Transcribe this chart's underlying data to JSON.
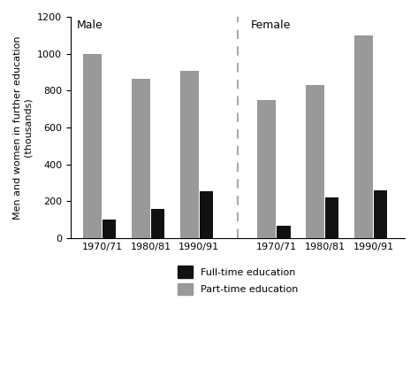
{
  "title_male": "Male",
  "title_female": "Female",
  "ylabel": "Men and women in further education\n(thousands)",
  "periods": [
    "1970/71",
    "1980/81",
    "1990/91"
  ],
  "male_fulltime": [
    100,
    160,
    255
  ],
  "male_parttime": [
    1000,
    865,
    905
  ],
  "female_fulltime": [
    70,
    220,
    260
  ],
  "female_parttime": [
    750,
    830,
    1100
  ],
  "ylim": [
    0,
    1200
  ],
  "yticks": [
    0,
    200,
    400,
    600,
    800,
    1000,
    1200
  ],
  "fulltime_color": "#111111",
  "parttime_color": "#999999",
  "pt_bar_width": 0.38,
  "ft_bar_width": 0.28,
  "legend_labels": [
    "Full-time education",
    "Part-time education"
  ],
  "figsize": [
    4.73,
    4.36
  ],
  "dpi": 100
}
